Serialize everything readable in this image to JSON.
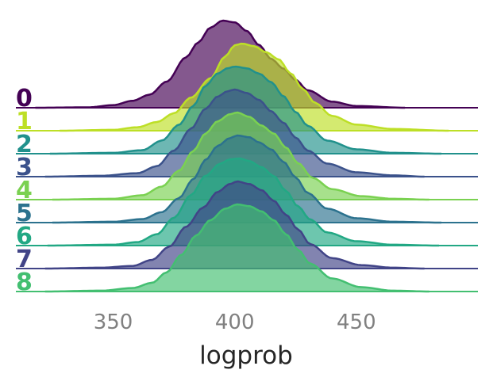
{
  "chart_data": {
    "type": "ridgeline",
    "xlabel": "logprob",
    "xticks": [
      350,
      400,
      450
    ],
    "xlim": [
      310,
      500
    ],
    "colors": [
      "#440154",
      "#bddf26",
      "#21918c",
      "#3b528b",
      "#7ad151",
      "#2c728e",
      "#22a884",
      "#414487",
      "#43bf71"
    ],
    "series": [
      {
        "name": "0",
        "range": [
          318,
          470
        ],
        "pts": [
          [
            318,
            0
          ],
          [
            340,
            0.005
          ],
          [
            350,
            0.03
          ],
          [
            358,
            0.08
          ],
          [
            365,
            0.15
          ],
          [
            372,
            0.3
          ],
          [
            380,
            0.58
          ],
          [
            385,
            0.75
          ],
          [
            390,
            0.92
          ],
          [
            395,
            1.0
          ],
          [
            400,
            0.98
          ],
          [
            405,
            0.88
          ],
          [
            410,
            0.72
          ],
          [
            415,
            0.56
          ],
          [
            420,
            0.45
          ],
          [
            425,
            0.32
          ],
          [
            430,
            0.2
          ],
          [
            440,
            0.07
          ],
          [
            450,
            0.02
          ],
          [
            470,
            0
          ]
        ]
      },
      {
        "name": "1",
        "range": [
          328,
          488
        ],
        "pts": [
          [
            328,
            0
          ],
          [
            350,
            0.01
          ],
          [
            360,
            0.04
          ],
          [
            368,
            0.1
          ],
          [
            375,
            0.2
          ],
          [
            382,
            0.38
          ],
          [
            390,
            0.6
          ],
          [
            396,
            0.85
          ],
          [
            400,
            0.98
          ],
          [
            403,
            1.0
          ],
          [
            408,
            0.97
          ],
          [
            413,
            0.9
          ],
          [
            418,
            0.82
          ],
          [
            423,
            0.66
          ],
          [
            428,
            0.48
          ],
          [
            433,
            0.32
          ],
          [
            440,
            0.17
          ],
          [
            450,
            0.07
          ],
          [
            465,
            0.02
          ],
          [
            488,
            0
          ]
        ]
      },
      {
        "name": "2",
        "range": [
          324,
          485
        ],
        "pts": [
          [
            324,
            0
          ],
          [
            350,
            0.01
          ],
          [
            362,
            0.04
          ],
          [
            370,
            0.15
          ],
          [
            377,
            0.33
          ],
          [
            383,
            0.55
          ],
          [
            388,
            0.78
          ],
          [
            393,
            0.92
          ],
          [
            397,
            0.98
          ],
          [
            400,
            1.0
          ],
          [
            405,
            0.98
          ],
          [
            410,
            0.92
          ],
          [
            415,
            0.82
          ],
          [
            420,
            0.66
          ],
          [
            425,
            0.48
          ],
          [
            430,
            0.32
          ],
          [
            438,
            0.15
          ],
          [
            450,
            0.05
          ],
          [
            465,
            0.01
          ],
          [
            485,
            0
          ]
        ]
      },
      {
        "name": "3",
        "range": [
          322,
          478
        ],
        "pts": [
          [
            322,
            0
          ],
          [
            345,
            0.01
          ],
          [
            360,
            0.04
          ],
          [
            368,
            0.12
          ],
          [
            375,
            0.3
          ],
          [
            382,
            0.55
          ],
          [
            388,
            0.78
          ],
          [
            393,
            0.92
          ],
          [
            397,
            0.98
          ],
          [
            400,
            1.0
          ],
          [
            405,
            0.96
          ],
          [
            410,
            0.88
          ],
          [
            415,
            0.75
          ],
          [
            420,
            0.62
          ],
          [
            425,
            0.45
          ],
          [
            430,
            0.3
          ],
          [
            438,
            0.15
          ],
          [
            450,
            0.05
          ],
          [
            465,
            0.015
          ],
          [
            478,
            0
          ]
        ]
      },
      {
        "name": "4",
        "range": [
          325,
          480
        ],
        "pts": [
          [
            325,
            0
          ],
          [
            350,
            0.01
          ],
          [
            362,
            0.05
          ],
          [
            370,
            0.15
          ],
          [
            377,
            0.33
          ],
          [
            383,
            0.56
          ],
          [
            388,
            0.76
          ],
          [
            393,
            0.9
          ],
          [
            398,
            0.98
          ],
          [
            401,
            1.0
          ],
          [
            406,
            0.95
          ],
          [
            411,
            0.85
          ],
          [
            416,
            0.76
          ],
          [
            421,
            0.6
          ],
          [
            426,
            0.42
          ],
          [
            432,
            0.25
          ],
          [
            440,
            0.12
          ],
          [
            452,
            0.04
          ],
          [
            465,
            0.01
          ],
          [
            480,
            0
          ]
        ]
      },
      {
        "name": "5",
        "range": [
          325,
          485
        ],
        "pts": [
          [
            325,
            0
          ],
          [
            350,
            0.01
          ],
          [
            362,
            0.04
          ],
          [
            370,
            0.12
          ],
          [
            377,
            0.28
          ],
          [
            383,
            0.5
          ],
          [
            388,
            0.72
          ],
          [
            393,
            0.88
          ],
          [
            398,
            0.97
          ],
          [
            401,
            1.0
          ],
          [
            406,
            0.98
          ],
          [
            410,
            0.92
          ],
          [
            415,
            0.84
          ],
          [
            420,
            0.7
          ],
          [
            425,
            0.52
          ],
          [
            430,
            0.34
          ],
          [
            438,
            0.16
          ],
          [
            450,
            0.05
          ],
          [
            465,
            0.01
          ],
          [
            485,
            0
          ]
        ]
      },
      {
        "name": "6",
        "range": [
          323,
          484
        ],
        "pts": [
          [
            323,
            0
          ],
          [
            350,
            0.01
          ],
          [
            360,
            0.04
          ],
          [
            368,
            0.13
          ],
          [
            375,
            0.32
          ],
          [
            382,
            0.58
          ],
          [
            388,
            0.8
          ],
          [
            394,
            0.94
          ],
          [
            398,
            0.99
          ],
          [
            402,
            1.0
          ],
          [
            406,
            0.97
          ],
          [
            411,
            0.9
          ],
          [
            416,
            0.8
          ],
          [
            421,
            0.63
          ],
          [
            426,
            0.45
          ],
          [
            431,
            0.3
          ],
          [
            438,
            0.15
          ],
          [
            450,
            0.05
          ],
          [
            465,
            0.01
          ],
          [
            484,
            0
          ]
        ]
      },
      {
        "name": "7",
        "range": [
          322,
          478
        ],
        "pts": [
          [
            322,
            0
          ],
          [
            345,
            0.01
          ],
          [
            358,
            0.03
          ],
          [
            366,
            0.1
          ],
          [
            373,
            0.25
          ],
          [
            380,
            0.48
          ],
          [
            387,
            0.7
          ],
          [
            393,
            0.88
          ],
          [
            398,
            0.97
          ],
          [
            401,
            1.0
          ],
          [
            406,
            0.97
          ],
          [
            411,
            0.9
          ],
          [
            416,
            0.78
          ],
          [
            421,
            0.62
          ],
          [
            426,
            0.45
          ],
          [
            431,
            0.28
          ],
          [
            440,
            0.12
          ],
          [
            452,
            0.04
          ],
          [
            465,
            0.01
          ],
          [
            478,
            0
          ]
        ]
      },
      {
        "name": "8",
        "range": [
          322,
          480
        ],
        "pts": [
          [
            322,
            0
          ],
          [
            345,
            0.01
          ],
          [
            358,
            0.04
          ],
          [
            366,
            0.1
          ],
          [
            372,
            0.22
          ],
          [
            378,
            0.42
          ],
          [
            384,
            0.64
          ],
          [
            390,
            0.82
          ],
          [
            396,
            0.95
          ],
          [
            401,
            1.0
          ],
          [
            406,
            0.98
          ],
          [
            411,
            0.92
          ],
          [
            416,
            0.82
          ],
          [
            421,
            0.66
          ],
          [
            426,
            0.48
          ],
          [
            431,
            0.32
          ],
          [
            440,
            0.15
          ],
          [
            452,
            0.05
          ],
          [
            465,
            0.01
          ],
          [
            480,
            0
          ]
        ]
      }
    ]
  }
}
